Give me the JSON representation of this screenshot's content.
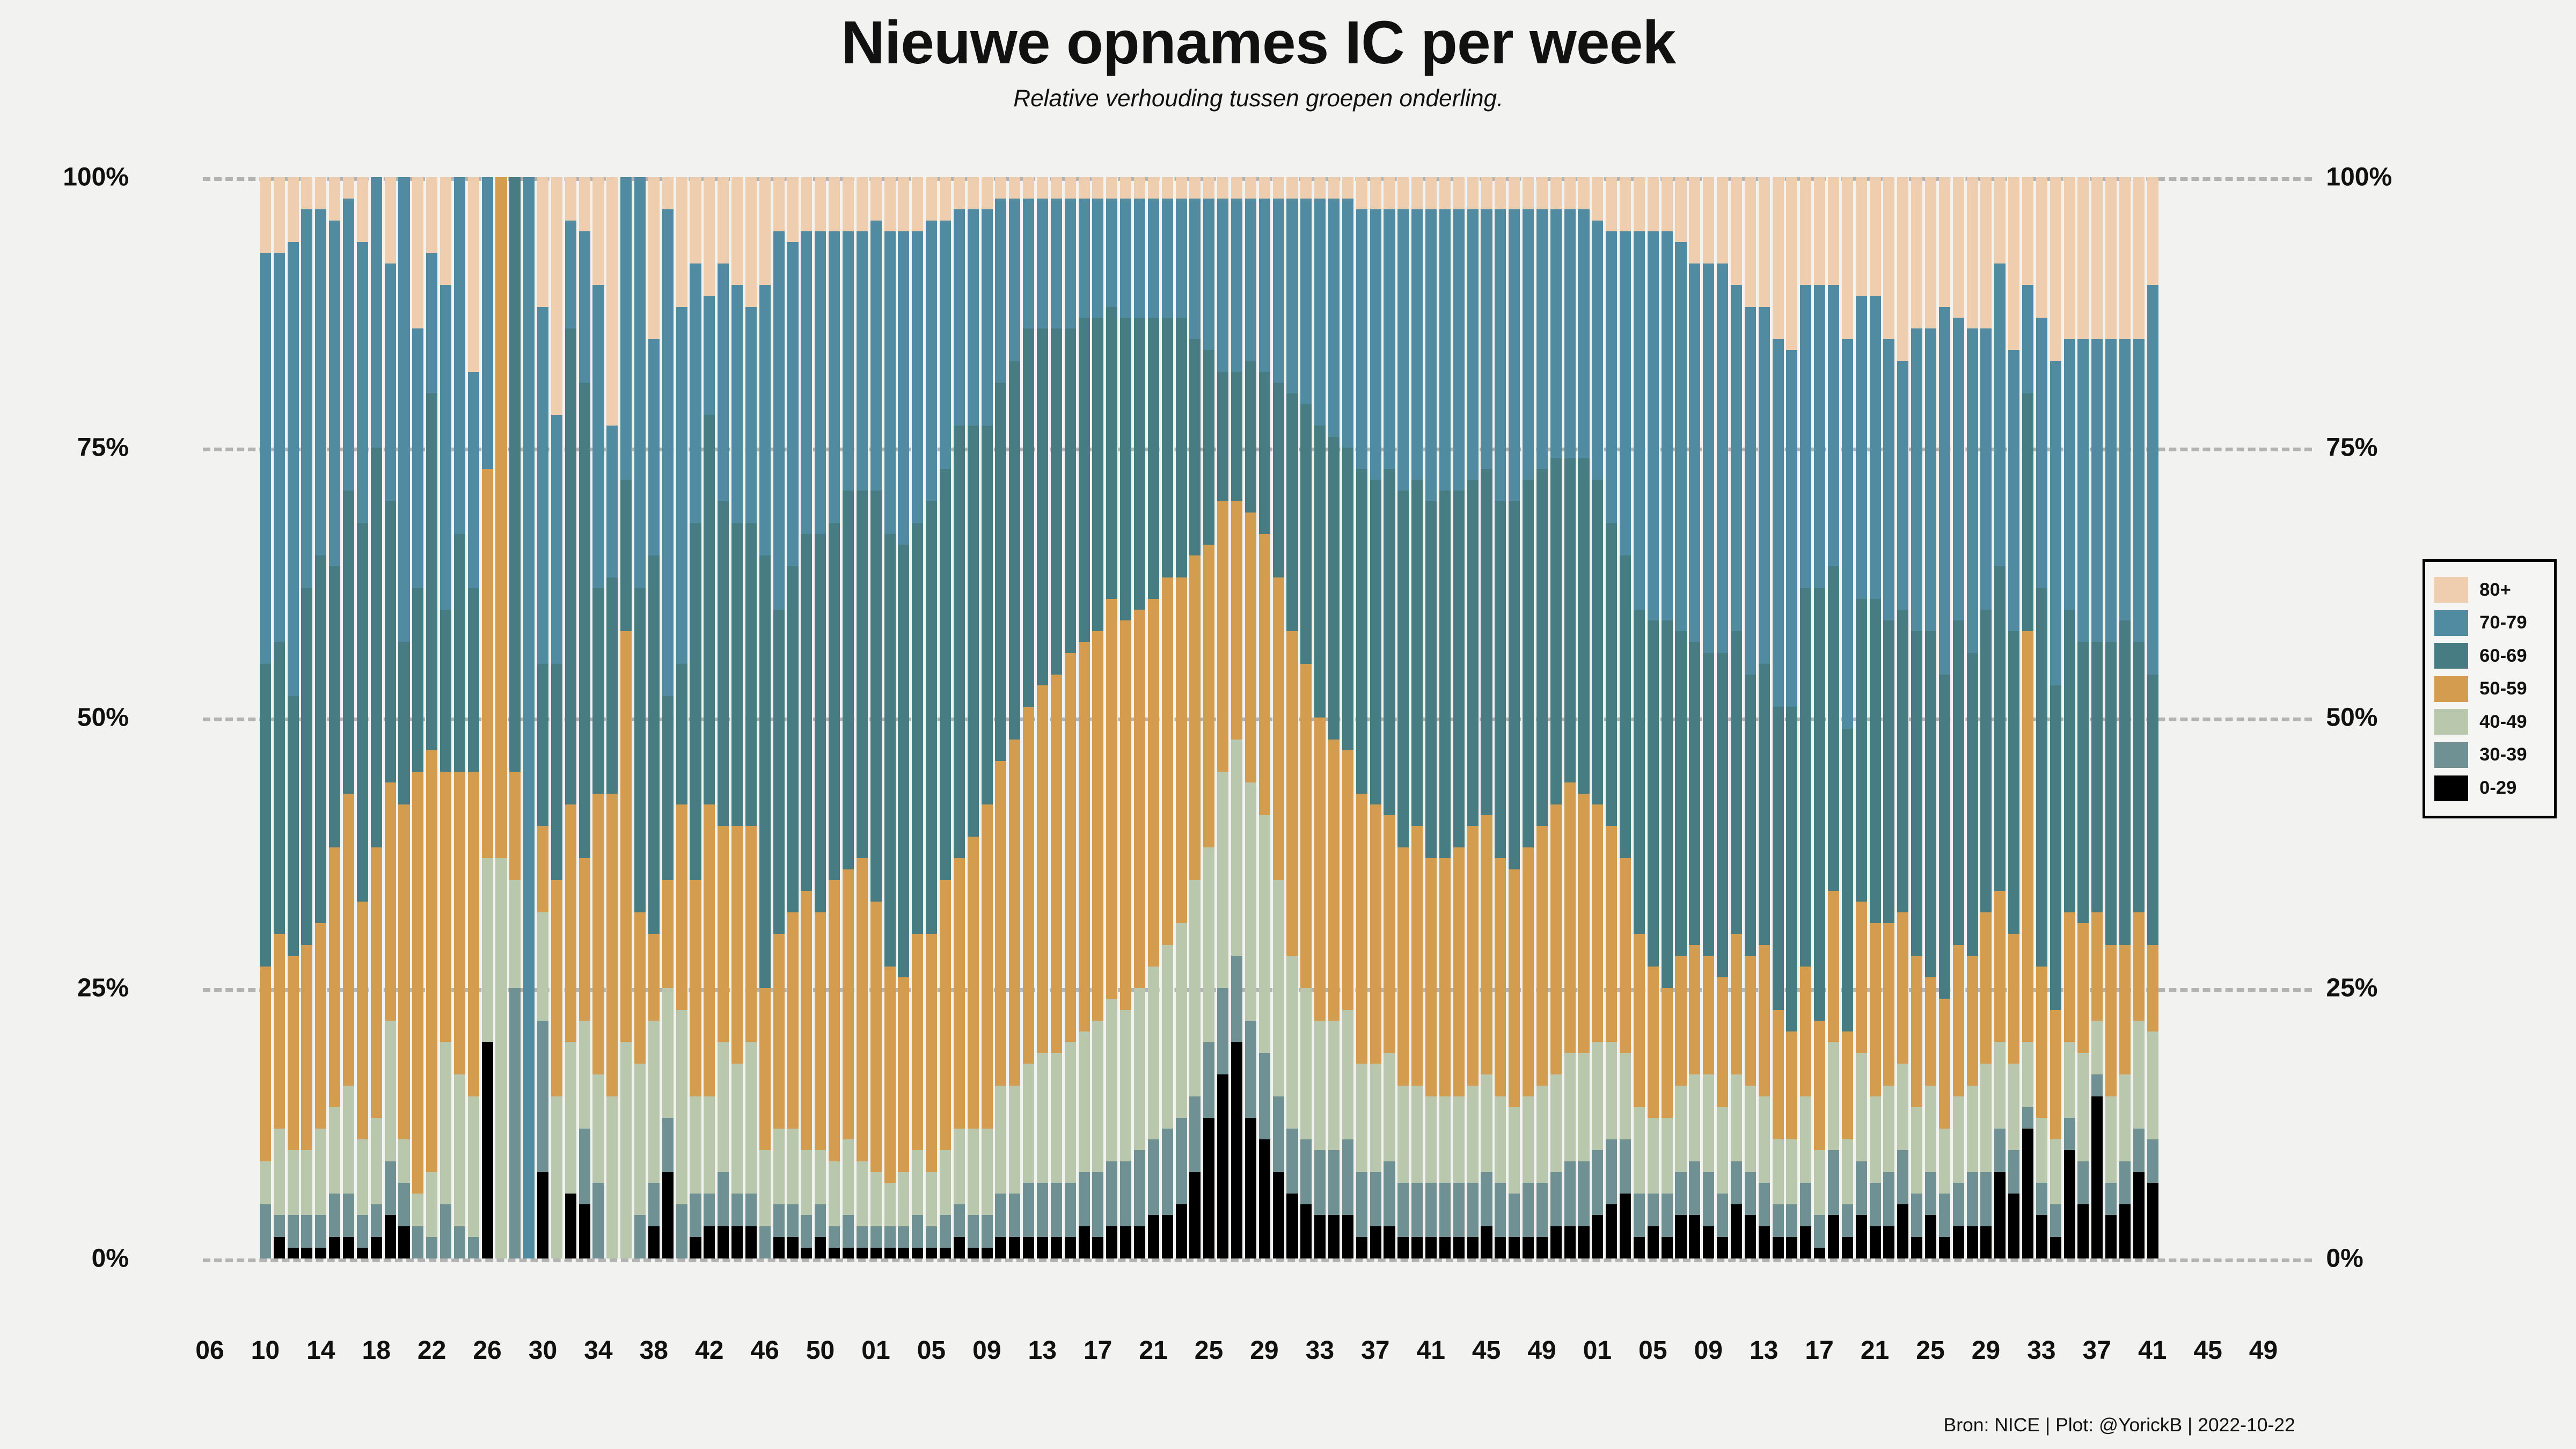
{
  "header": {
    "title": "Nieuwe opnames IC per week",
    "subtitle": "Relative verhouding tussen groepen onderling."
  },
  "footer": "Bron: NICE | Plot: @YorickB |  2022-10-22",
  "colors": {
    "background": "#f2f2f0",
    "gridline": "#b3b3b3",
    "legend_border": "#000000"
  },
  "legend": {
    "items": [
      {
        "label": "80+",
        "color": "#efcdaf"
      },
      {
        "label": "70-79",
        "color": "#508ba1"
      },
      {
        "label": "60-69",
        "color": "#477c82"
      },
      {
        "label": "50-59",
        "color": "#d49c4e"
      },
      {
        "label": "40-49",
        "color": "#b9c7ac"
      },
      {
        "label": "30-39",
        "color": "#6f9194"
      },
      {
        "label": "0-29",
        "color": "#000000"
      }
    ]
  },
  "chart_data": {
    "type": "bar",
    "stacked": true,
    "percent_normalized": true,
    "title": "Nieuwe opnames IC per week",
    "subtitle": "Relative verhouding tussen groepen onderling.",
    "xlabel": "",
    "ylabel": "",
    "ylim": [
      0,
      100
    ],
    "grid": "dashed-horizontal",
    "legend_position": "right",
    "y_ticks": [
      {
        "label": "0%",
        "value": 0
      },
      {
        "label": "25%",
        "value": 25
      },
      {
        "label": "50%",
        "value": 50
      },
      {
        "label": "75%",
        "value": 75
      },
      {
        "label": "100%",
        "value": 100
      }
    ],
    "x_tick_labels": [
      "06",
      "10",
      "14",
      "18",
      "22",
      "26",
      "30",
      "34",
      "38",
      "42",
      "46",
      "50",
      "01",
      "05",
      "09",
      "13",
      "17",
      "21",
      "25",
      "29",
      "33",
      "37",
      "41",
      "45",
      "49",
      "01",
      "05",
      "09",
      "13",
      "17",
      "21",
      "25",
      "29",
      "33",
      "37",
      "41",
      "45",
      "49"
    ],
    "axis_total_slots": 152,
    "lead_empty_slots": 4,
    "trail_empty_slots": 11,
    "categories": [
      "10",
      "11",
      "12",
      "13",
      "14",
      "15",
      "16",
      "17",
      "18",
      "19",
      "20",
      "21",
      "22",
      "23",
      "24",
      "25",
      "26",
      "27",
      "28",
      "29",
      "30",
      "31",
      "32",
      "33",
      "34",
      "35",
      "36",
      "37",
      "38",
      "39",
      "40",
      "41",
      "42",
      "43",
      "44",
      "45",
      "46",
      "47",
      "48",
      "49",
      "50",
      "51",
      "52",
      "53",
      "01",
      "02",
      "03",
      "04",
      "05",
      "06",
      "07",
      "08",
      "09",
      "10",
      "11",
      "12",
      "13",
      "14",
      "15",
      "16",
      "17",
      "18",
      "19",
      "20",
      "21",
      "22",
      "23",
      "24",
      "25",
      "26",
      "27",
      "28",
      "29",
      "30",
      "31",
      "32",
      "33",
      "34",
      "35",
      "36",
      "37",
      "38",
      "39",
      "40",
      "41",
      "42",
      "43",
      "44",
      "45",
      "46",
      "47",
      "48",
      "49",
      "50",
      "51",
      "52",
      "01",
      "02",
      "03",
      "04",
      "05",
      "06",
      "07",
      "08",
      "09",
      "10",
      "11",
      "12",
      "13",
      "14",
      "15",
      "16",
      "17",
      "18",
      "19",
      "20",
      "21",
      "22",
      "23",
      "24",
      "25",
      "26",
      "27",
      "28",
      "29",
      "30",
      "31",
      "32",
      "33",
      "34",
      "35",
      "36",
      "37",
      "38",
      "39",
      "40",
      "41"
    ],
    "series": [
      {
        "name": "0-29",
        "color": "#000000",
        "values": [
          0,
          2,
          1,
          1,
          1,
          2,
          2,
          1,
          2,
          4,
          3,
          0,
          0,
          0,
          0,
          0,
          20,
          0,
          0,
          0,
          8,
          0,
          6,
          5,
          0,
          0,
          0,
          0,
          3,
          8,
          0,
          2,
          3,
          3,
          3,
          3,
          0,
          2,
          2,
          1,
          2,
          1,
          1,
          1,
          1,
          1,
          1,
          1,
          1,
          1,
          2,
          1,
          1,
          2,
          2,
          2,
          2,
          2,
          2,
          3,
          2,
          3,
          3,
          3,
          4,
          4,
          5,
          8,
          13,
          17,
          20,
          13,
          11,
          8,
          6,
          5,
          4,
          4,
          4,
          2,
          3,
          3,
          2,
          2,
          2,
          2,
          2,
          2,
          3,
          2,
          2,
          2,
          2,
          3,
          3,
          3,
          4,
          5,
          6,
          2,
          3,
          2,
          4,
          4,
          3,
          2,
          5,
          4,
          3,
          2,
          2,
          3,
          1,
          4,
          2,
          4,
          3,
          3,
          5,
          2,
          4,
          2,
          3,
          3,
          3,
          8,
          6,
          12,
          4,
          2,
          10,
          5,
          15,
          4,
          5,
          8,
          7
        ]
      },
      {
        "name": "30-39",
        "color": "#6f9194",
        "values": [
          5,
          2,
          3,
          3,
          3,
          4,
          4,
          3,
          3,
          5,
          4,
          3,
          2,
          5,
          3,
          2,
          0,
          0,
          25,
          0,
          14,
          0,
          0,
          7,
          7,
          0,
          0,
          4,
          4,
          5,
          5,
          4,
          3,
          5,
          3,
          3,
          3,
          3,
          3,
          3,
          3,
          2,
          3,
          2,
          2,
          2,
          2,
          3,
          2,
          3,
          3,
          3,
          3,
          4,
          4,
          5,
          5,
          5,
          5,
          5,
          6,
          6,
          6,
          7,
          7,
          8,
          8,
          7,
          7,
          8,
          8,
          9,
          8,
          7,
          6,
          6,
          6,
          6,
          7,
          6,
          5,
          6,
          5,
          5,
          5,
          5,
          5,
          5,
          5,
          5,
          4,
          5,
          5,
          5,
          6,
          6,
          6,
          6,
          5,
          4,
          3,
          4,
          4,
          5,
          5,
          4,
          4,
          4,
          4,
          3,
          3,
          4,
          3,
          6,
          3,
          5,
          4,
          5,
          5,
          4,
          4,
          4,
          4,
          5,
          5,
          4,
          4,
          2,
          3,
          3,
          3,
          4,
          2,
          3,
          4,
          4,
          4
        ]
      },
      {
        "name": "40-49",
        "color": "#b9c7ac",
        "values": [
          4,
          8,
          6,
          6,
          8,
          8,
          10,
          7,
          8,
          13,
          4,
          3,
          6,
          15,
          14,
          13,
          17,
          37,
          10,
          0,
          10,
          15,
          14,
          10,
          10,
          15,
          20,
          14,
          15,
          12,
          18,
          9,
          9,
          12,
          12,
          14,
          7,
          7,
          7,
          6,
          5,
          6,
          7,
          6,
          5,
          4,
          5,
          6,
          5,
          6,
          7,
          8,
          8,
          10,
          10,
          11,
          12,
          12,
          13,
          13,
          14,
          15,
          14,
          15,
          16,
          17,
          18,
          20,
          18,
          20,
          20,
          22,
          22,
          20,
          16,
          14,
          12,
          12,
          12,
          10,
          10,
          10,
          9,
          9,
          8,
          8,
          8,
          9,
          9,
          8,
          8,
          8,
          9,
          9,
          10,
          10,
          10,
          9,
          8,
          8,
          7,
          7,
          8,
          8,
          9,
          8,
          8,
          8,
          8,
          6,
          6,
          8,
          6,
          10,
          6,
          10,
          8,
          8,
          8,
          8,
          8,
          6,
          8,
          8,
          10,
          8,
          8,
          6,
          6,
          6,
          7,
          10,
          5,
          8,
          8,
          10,
          10
        ]
      },
      {
        "name": "50-59",
        "color": "#d49c4e",
        "values": [
          18,
          18,
          18,
          19,
          19,
          24,
          27,
          22,
          25,
          22,
          31,
          39,
          39,
          25,
          28,
          30,
          36,
          63,
          10,
          0,
          8,
          20,
          22,
          15,
          26,
          28,
          38,
          14,
          8,
          10,
          19,
          20,
          27,
          20,
          22,
          20,
          15,
          18,
          20,
          24,
          22,
          26,
          25,
          28,
          25,
          20,
          18,
          20,
          22,
          25,
          25,
          27,
          30,
          30,
          32,
          33,
          34,
          35,
          36,
          36,
          36,
          37,
          36,
          35,
          34,
          34,
          32,
          30,
          28,
          25,
          22,
          25,
          26,
          28,
          30,
          30,
          28,
          26,
          24,
          25,
          24,
          22,
          22,
          24,
          22,
          22,
          23,
          24,
          24,
          22,
          22,
          23,
          24,
          25,
          25,
          24,
          22,
          20,
          18,
          16,
          14,
          12,
          12,
          12,
          11,
          12,
          13,
          12,
          14,
          12,
          10,
          12,
          12,
          14,
          10,
          14,
          16,
          15,
          14,
          14,
          10,
          12,
          14,
          12,
          14,
          14,
          12,
          38,
          14,
          12,
          12,
          12,
          10,
          14,
          12,
          10,
          8
        ]
      },
      {
        "name": "60-69",
        "color": "#477c82",
        "values": [
          28,
          27,
          24,
          33,
          34,
          26,
          28,
          35,
          37,
          26,
          15,
          17,
          33,
          15,
          22,
          17,
          0,
          0,
          55,
          0,
          15,
          20,
          44,
          44,
          19,
          20,
          14,
          30,
          35,
          17,
          13,
          33,
          36,
          30,
          28,
          28,
          40,
          30,
          32,
          33,
          35,
          33,
          35,
          34,
          38,
          40,
          40,
          38,
          40,
          38,
          40,
          38,
          35,
          35,
          35,
          35,
          33,
          32,
          30,
          30,
          29,
          27,
          28,
          27,
          26,
          24,
          24,
          20,
          18,
          12,
          12,
          14,
          15,
          18,
          22,
          24,
          27,
          28,
          28,
          30,
          30,
          32,
          33,
          32,
          33,
          34,
          33,
          32,
          32,
          33,
          34,
          34,
          33,
          32,
          30,
          31,
          30,
          28,
          28,
          30,
          32,
          34,
          30,
          28,
          28,
          30,
          28,
          26,
          26,
          28,
          30,
          35,
          40,
          30,
          28,
          28,
          30,
          28,
          28,
          30,
          32,
          30,
          30,
          28,
          28,
          30,
          28,
          22,
          35,
          30,
          28,
          26,
          25,
          28,
          30,
          25,
          25
        ]
      },
      {
        "name": "70-79",
        "color": "#508ba1",
        "values": [
          38,
          36,
          42,
          35,
          32,
          32,
          27,
          26,
          25,
          22,
          43,
          24,
          13,
          30,
          33,
          20,
          27,
          0,
          0,
          100,
          33,
          23,
          10,
          14,
          28,
          14,
          28,
          38,
          20,
          45,
          33,
          24,
          11,
          22,
          22,
          20,
          25,
          35,
          30,
          28,
          28,
          27,
          24,
          24,
          25,
          28,
          29,
          27,
          26,
          23,
          20,
          20,
          20,
          17,
          15,
          12,
          12,
          12,
          12,
          11,
          11,
          10,
          11,
          11,
          11,
          11,
          11,
          13,
          14,
          16,
          16,
          15,
          16,
          17,
          18,
          19,
          21,
          22,
          23,
          24,
          25,
          24,
          26,
          25,
          27,
          26,
          26,
          25,
          24,
          27,
          27,
          25,
          24,
          23,
          23,
          23,
          24,
          27,
          30,
          35,
          36,
          36,
          36,
          35,
          36,
          36,
          32,
          34,
          33,
          34,
          33,
          28,
          28,
          26,
          36,
          28,
          28,
          26,
          23,
          28,
          28,
          34,
          28,
          30,
          26,
          28,
          26,
          10,
          25,
          30,
          25,
          28,
          28,
          28,
          26,
          28,
          36
        ]
      },
      {
        "name": "80+",
        "color": "#efcdaf",
        "values": [
          7,
          7,
          6,
          3,
          3,
          4,
          2,
          6,
          0,
          8,
          0,
          14,
          7,
          10,
          0,
          18,
          0,
          0,
          0,
          0,
          12,
          22,
          4,
          5,
          10,
          23,
          0,
          0,
          15,
          3,
          12,
          8,
          11,
          8,
          10,
          12,
          10,
          5,
          6,
          5,
          5,
          5,
          5,
          5,
          4,
          5,
          5,
          5,
          4,
          4,
          3,
          3,
          3,
          2,
          2,
          2,
          2,
          2,
          2,
          2,
          2,
          2,
          2,
          2,
          2,
          2,
          2,
          2,
          2,
          2,
          2,
          2,
          2,
          2,
          2,
          2,
          2,
          2,
          2,
          3,
          3,
          3,
          3,
          3,
          3,
          3,
          3,
          3,
          3,
          3,
          3,
          3,
          3,
          3,
          3,
          3,
          4,
          5,
          5,
          5,
          5,
          5,
          6,
          8,
          8,
          8,
          10,
          12,
          12,
          15,
          16,
          10,
          10,
          10,
          15,
          11,
          11,
          15,
          17,
          14,
          14,
          12,
          13,
          14,
          14,
          8,
          16,
          10,
          13,
          17,
          15,
          15,
          15,
          15,
          15,
          15,
          10
        ]
      }
    ]
  }
}
